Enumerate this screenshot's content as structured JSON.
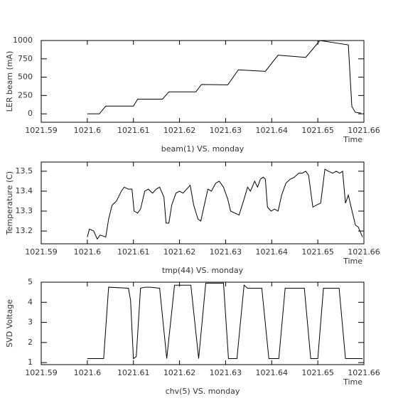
{
  "chart_data": [
    {
      "type": "line",
      "title": "beam(1) VS. monday",
      "xlabel": "Time",
      "ylabel": "LER beam (mA)",
      "color": "#000000",
      "x": [
        1021.6,
        1021.60262,
        1021.604,
        1021.61,
        1021.61092,
        1021.61631,
        1021.61769,
        1021.62354,
        1021.62477,
        1021.63046,
        1021.63277,
        1021.63862,
        1021.64138,
        1021.64738,
        1021.65046,
        1021.65662,
        1021.65738,
        1021.65815,
        1021.65938
      ],
      "values": [
        0,
        0,
        105,
        105,
        200,
        200,
        300,
        300,
        400,
        395,
        600,
        580,
        800,
        770,
        1000,
        940,
        100,
        20,
        10
      ],
      "xlim": [
        1021.59,
        1021.66
      ],
      "xticks": [
        1021.59,
        1021.6,
        1021.61,
        1021.62,
        1021.63,
        1021.64,
        1021.65,
        1021.66
      ],
      "ylim": [
        -115,
        1000
      ],
      "yticks": [
        0,
        250,
        500,
        750,
        1000
      ]
    },
    {
      "type": "line",
      "title": "tmp(44) VS. monday",
      "xlabel": "Time",
      "ylabel": "Temperature (C)",
      "color": "#000000",
      "x": [
        1021.6,
        1021.60046,
        1021.60138,
        1021.60215,
        1021.60277,
        1021.604,
        1021.60462,
        1021.60538,
        1021.60631,
        1021.60738,
        1021.608,
        1021.60892,
        1021.60969,
        1021.61015,
        1021.61092,
        1021.61154,
        1021.61246,
        1021.61323,
        1021.61415,
        1021.61492,
        1021.61569,
        1021.61662,
        1021.61708,
        1021.61769,
        1021.61831,
        1021.61923,
        1021.62,
        1021.62077,
        1021.62154,
        1021.62231,
        1021.62308,
        1021.624,
        1021.62462,
        1021.62538,
        1021.62615,
        1021.62692,
        1021.62785,
        1021.62862,
        1021.62954,
        1021.63046,
        1021.63108,
        1021.632,
        1021.63292,
        1021.634,
        1021.63477,
        1021.63538,
        1021.63631,
        1021.63692,
        1021.63754,
        1021.63815,
        1021.63862,
        1021.63908,
        1021.63985,
        1021.64062,
        1021.64138,
        1021.64215,
        1021.64308,
        1021.644,
        1021.64492,
        1021.64585,
        1021.64662,
        1021.64738,
        1021.648,
        1021.64892,
        1021.64969,
        1021.65062,
        1021.65154,
        1021.65231,
        1021.65323,
        1021.654,
        1021.65477,
        1021.65538,
        1021.656,
        1021.65662,
        1021.65723,
        1021.65815,
        1021.65877,
        1021.65969
      ],
      "values": [
        13.17,
        13.21,
        13.2,
        13.16,
        13.18,
        13.17,
        13.26,
        13.33,
        13.35,
        13.4,
        13.42,
        13.41,
        13.41,
        13.3,
        13.29,
        13.31,
        13.4,
        13.41,
        13.39,
        13.41,
        13.42,
        13.37,
        13.24,
        13.24,
        13.33,
        13.39,
        13.4,
        13.39,
        13.41,
        13.43,
        13.33,
        13.26,
        13.25,
        13.33,
        13.41,
        13.4,
        13.44,
        13.45,
        13.42,
        13.36,
        13.3,
        13.29,
        13.28,
        13.36,
        13.42,
        13.4,
        13.45,
        13.42,
        13.46,
        13.47,
        13.46,
        13.32,
        13.3,
        13.31,
        13.3,
        13.38,
        13.44,
        13.46,
        13.47,
        13.49,
        13.49,
        13.5,
        13.48,
        13.32,
        13.33,
        13.34,
        13.51,
        13.5,
        13.49,
        13.5,
        13.49,
        13.5,
        13.34,
        13.38,
        13.32,
        13.23,
        13.22,
        13.17
      ],
      "xlim": [
        1021.59,
        1021.66
      ],
      "xticks": [
        1021.59,
        1021.6,
        1021.61,
        1021.62,
        1021.63,
        1021.64,
        1021.65,
        1021.66
      ],
      "ylim": [
        13.136,
        13.546
      ],
      "yticks": [
        13.2,
        13.3,
        13.4,
        13.5
      ]
    },
    {
      "type": "line",
      "title": "chv(5) VS. monday",
      "xlabel": "Time",
      "ylabel": "SVD Voltage",
      "color": "#000000",
      "x": [
        1021.6,
        1021.60354,
        1021.60462,
        1021.60892,
        1021.60938,
        1021.61,
        1021.61062,
        1021.61154,
        1021.61246,
        1021.61369,
        1021.61569,
        1021.61723,
        1021.61892,
        1021.62246,
        1021.62415,
        1021.62569,
        1021.62954,
        1021.63062,
        1021.63246,
        1021.634,
        1021.63477,
        1021.63785,
        1021.63938,
        1021.64154,
        1021.64292,
        1021.64708,
        1021.64846,
        1021.65,
        1021.65123,
        1021.65462,
        1021.656,
        1021.65969
      ],
      "values": [
        1.2,
        1.2,
        4.75,
        4.7,
        4.1,
        1.2,
        1.3,
        4.7,
        4.75,
        4.75,
        4.7,
        1.2,
        4.85,
        4.85,
        1.2,
        4.95,
        4.95,
        1.2,
        1.2,
        4.85,
        4.7,
        4.7,
        1.2,
        1.2,
        4.7,
        4.7,
        1.2,
        1.2,
        4.7,
        4.7,
        1.2,
        1.2
      ],
      "xlim": [
        1021.59,
        1021.66
      ],
      "xticks": [
        1021.59,
        1021.6,
        1021.61,
        1021.62,
        1021.63,
        1021.64,
        1021.65,
        1021.66
      ],
      "ylim": [
        0.9,
        5
      ],
      "yticks": [
        1,
        2,
        3,
        4,
        5
      ]
    }
  ]
}
